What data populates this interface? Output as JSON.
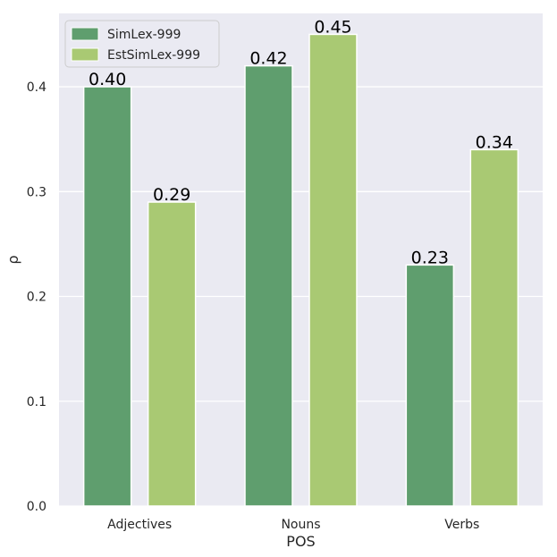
{
  "chart_data": {
    "type": "bar",
    "title": "",
    "xlabel": "POS",
    "ylabel": "ρ",
    "categories": [
      "Adjectives",
      "Nouns",
      "Verbs"
    ],
    "series": [
      {
        "name": "SimLex-999",
        "values": [
          0.4,
          0.42,
          0.23
        ],
        "color": "#5f9e6e"
      },
      {
        "name": "EstSimLex-999",
        "values": [
          0.29,
          0.45,
          0.34
        ],
        "color": "#a9c973"
      }
    ],
    "data_labels": [
      [
        "0.40",
        "0.42",
        "0.23"
      ],
      [
        "0.29",
        "0.45",
        "0.34"
      ]
    ],
    "ylim": [
      0,
      0.47
    ],
    "yticks": [
      0.0,
      0.1,
      0.2,
      0.3,
      0.4
    ],
    "ytick_labels": [
      "0.0",
      "0.1",
      "0.2",
      "0.3",
      "0.4"
    ],
    "grid": true,
    "legend_position": "top-left",
    "background_color": "#eaeaf2",
    "grid_color": "#ffffff"
  }
}
